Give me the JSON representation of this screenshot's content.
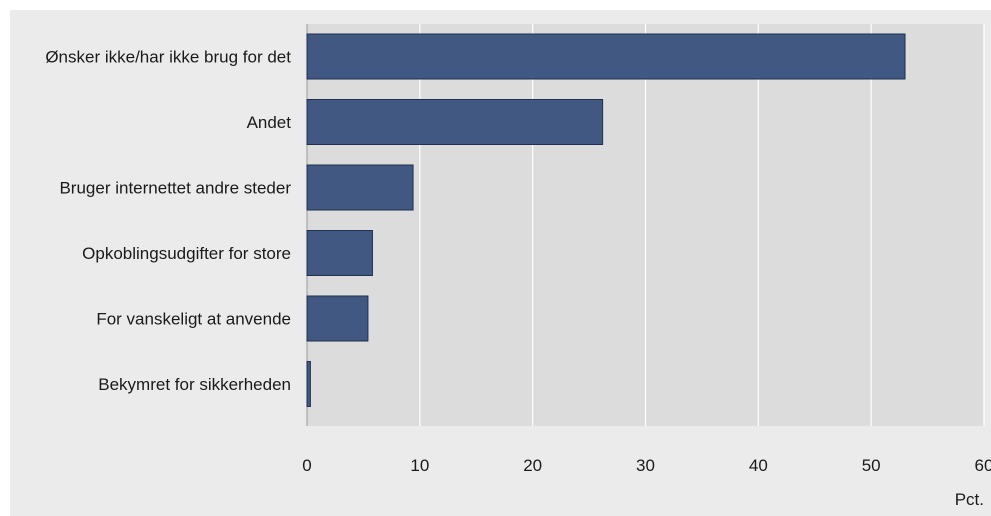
{
  "chart_data": {
    "type": "bar",
    "orientation": "horizontal",
    "categories": [
      "Ønsker ikke/har ikke brug for det",
      "Andet",
      "Bruger internettet andre steder",
      "Opkoblingsudgifter for store",
      "For vanskeligt at anvende",
      "Bekymret for sikkerheden"
    ],
    "values": [
      53,
      26.2,
      9.4,
      5.8,
      5.4,
      0.3
    ],
    "xlim": [
      0,
      60
    ],
    "xticks": [
      0,
      10,
      20,
      30,
      40,
      50,
      60
    ],
    "xlabel": "Pct.",
    "title": "",
    "grid": true,
    "colors": {
      "bar": "#415882",
      "bar_edge": "#1f2f4f",
      "plot_bg": "#dcdcdc",
      "panel_bg": "#ebebeb",
      "grid": "#ffffff"
    }
  }
}
